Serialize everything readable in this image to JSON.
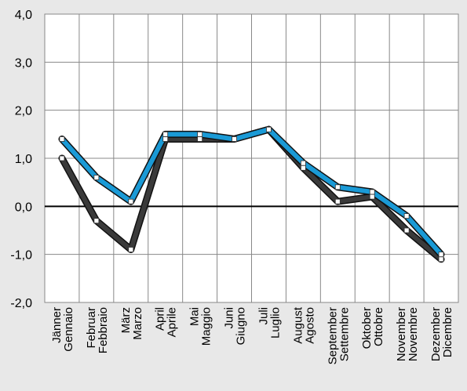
{
  "chart_data": {
    "type": "line",
    "categories": [
      [
        "Jänner",
        "Gennaio"
      ],
      [
        "Februar",
        "Febbraio"
      ],
      [
        "März",
        "Marzo"
      ],
      [
        "April",
        "Aprile"
      ],
      [
        "Mai",
        "Maggio"
      ],
      [
        "Juni",
        "Giugno"
      ],
      [
        "Juli",
        "Luglio"
      ],
      [
        "August",
        "Agosto"
      ],
      [
        "September",
        "Settembre"
      ],
      [
        "Oktober",
        "Ottobre"
      ],
      [
        "November",
        "Novembre"
      ],
      [
        "Dezember",
        "Dicembre"
      ]
    ],
    "y_ticks": [
      "4,0",
      "3,0",
      "2,0",
      "1,0",
      "0,0",
      "-1,0",
      "-2,0"
    ],
    "ylim": [
      -2,
      4
    ],
    "grid": true,
    "series": [
      {
        "color": "#1a9ad6",
        "values": [
          1.4,
          0.6,
          0.1,
          1.5,
          1.5,
          1.4,
          1.6,
          0.9,
          0.4,
          0.3,
          -0.2,
          -1.0
        ]
      },
      {
        "color": "#3a3a3a",
        "values": [
          1.0,
          -0.3,
          -0.9,
          1.4,
          1.4,
          1.4,
          1.6,
          0.8,
          0.1,
          0.2,
          -0.5,
          -1.1
        ]
      }
    ],
    "title": ""
  }
}
